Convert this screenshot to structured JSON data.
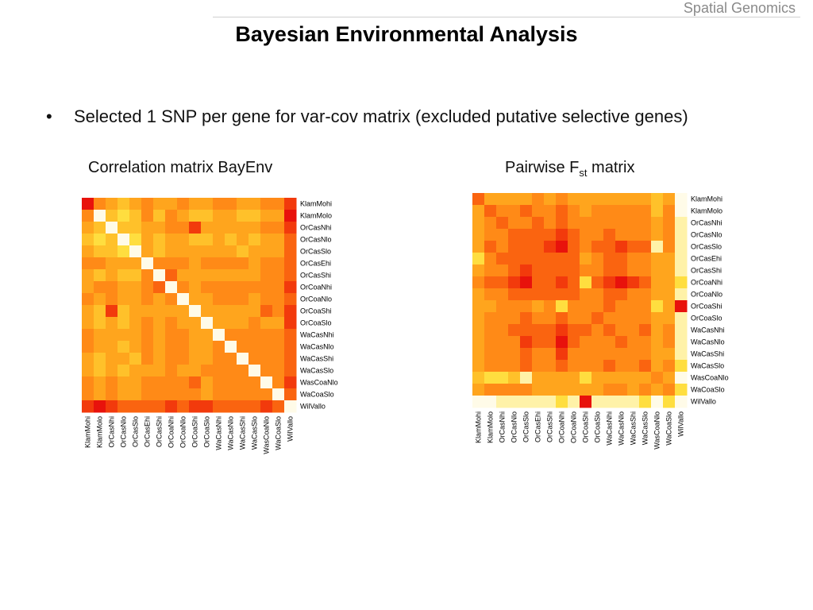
{
  "header": {
    "label": "Spatial Genomics"
  },
  "slide": {
    "title": "Bayesian Environmental Analysis",
    "bullet": "Selected 1 SNP per gene for var-cov matrix (excluded putative selective genes)",
    "bullet_symbol": "•"
  },
  "captions": {
    "left": "Correlation matrix BayEnv",
    "right_prefix": "Pairwise F",
    "right_sub": "st",
    "right_suffix": " matrix"
  },
  "chart_data": [
    {
      "type": "heatmap",
      "title": "Correlation matrix BayEnv",
      "row_labels": [
        "KlamMohi",
        "KlamMolo",
        "OrCasNhi",
        "OrCasNlo",
        "OrCasSlo",
        "OrCasEhi",
        "OrCasShi",
        "OrCoaNhi",
        "OrCoaNlo",
        "OrCoaShi",
        "OrCoaSlo",
        "WaCasNhi",
        "WaCasNlo",
        "WaCasShi",
        "WaCasSlo",
        "WasCoaNlo",
        "WaCoaSlo",
        "WilVallo"
      ],
      "col_labels": [
        "KlamMohi",
        "KlamMolo",
        "OrCasNhi",
        "OrCasNlo",
        "OrCasSlo",
        "OrCasEhi",
        "OrCasShi",
        "OrCoaNhi",
        "OrCoaNlo",
        "OrCoaShi",
        "OrCoaSlo",
        "WaCasNhi",
        "WaCasNlo",
        "WaCasShi",
        "WaCasSlo",
        "WasCoaNlo",
        "WaCoaSlo",
        "WilVallo"
      ],
      "colors": [
        "#e8120c",
        "#f23a0c",
        "#fa6410",
        "#ff8a17",
        "#ffa51d",
        "#ffc12a",
        "#ffde3f",
        "#fff2a8",
        "#fffbe8"
      ],
      "values": [
        [
          0,
          3,
          4,
          5,
          4,
          3,
          4,
          4,
          3,
          4,
          4,
          3,
          3,
          4,
          4,
          3,
          3,
          1
        ],
        [
          3,
          8,
          5,
          6,
          5,
          3,
          5,
          3,
          4,
          5,
          5,
          4,
          4,
          5,
          5,
          4,
          4,
          0
        ],
        [
          4,
          5,
          8,
          5,
          5,
          4,
          4,
          3,
          3,
          1,
          4,
          4,
          4,
          4,
          4,
          3,
          3,
          1
        ],
        [
          5,
          6,
          5,
          8,
          6,
          4,
          5,
          4,
          4,
          5,
          5,
          4,
          5,
          4,
          5,
          4,
          4,
          2
        ],
        [
          4,
          5,
          5,
          6,
          8,
          4,
          5,
          4,
          4,
          4,
          4,
          4,
          4,
          5,
          4,
          4,
          4,
          2
        ],
        [
          3,
          3,
          4,
          4,
          4,
          8,
          3,
          3,
          3,
          4,
          3,
          3,
          3,
          3,
          4,
          3,
          3,
          2
        ],
        [
          4,
          5,
          4,
          5,
          5,
          3,
          8,
          2,
          4,
          4,
          4,
          4,
          4,
          4,
          4,
          3,
          3,
          2
        ],
        [
          4,
          3,
          3,
          4,
          4,
          3,
          2,
          8,
          3,
          4,
          3,
          3,
          3,
          3,
          3,
          3,
          3,
          1
        ],
        [
          3,
          4,
          3,
          4,
          4,
          3,
          4,
          3,
          8,
          4,
          4,
          3,
          3,
          3,
          4,
          3,
          3,
          2
        ],
        [
          4,
          5,
          1,
          5,
          4,
          4,
          4,
          4,
          4,
          8,
          4,
          4,
          4,
          4,
          4,
          2,
          3,
          1
        ],
        [
          4,
          5,
          4,
          5,
          4,
          3,
          4,
          3,
          4,
          4,
          8,
          4,
          4,
          4,
          3,
          4,
          4,
          1
        ],
        [
          3,
          4,
          4,
          4,
          4,
          3,
          4,
          3,
          3,
          4,
          4,
          8,
          3,
          3,
          3,
          3,
          3,
          2
        ],
        [
          3,
          4,
          4,
          5,
          4,
          3,
          4,
          3,
          3,
          4,
          4,
          3,
          8,
          3,
          3,
          3,
          3,
          2
        ],
        [
          4,
          5,
          4,
          4,
          5,
          3,
          4,
          3,
          3,
          4,
          4,
          3,
          3,
          8,
          3,
          3,
          3,
          2
        ],
        [
          4,
          5,
          4,
          5,
          4,
          4,
          4,
          3,
          4,
          4,
          3,
          3,
          3,
          3,
          8,
          3,
          3,
          2
        ],
        [
          3,
          4,
          3,
          4,
          4,
          3,
          3,
          3,
          3,
          2,
          4,
          3,
          3,
          3,
          3,
          8,
          3,
          1
        ],
        [
          3,
          4,
          3,
          4,
          4,
          3,
          3,
          3,
          3,
          3,
          4,
          3,
          3,
          3,
          3,
          3,
          8,
          2
        ],
        [
          1,
          0,
          1,
          2,
          2,
          2,
          2,
          1,
          2,
          1,
          1,
          2,
          2,
          2,
          2,
          1,
          2,
          8
        ]
      ]
    },
    {
      "type": "heatmap",
      "title": "Pairwise Fst matrix",
      "row_labels": [
        "KlamMohi",
        "KlamMolo",
        "OrCasNhi",
        "OrCasNlo",
        "OrCasSlo",
        "OrCasEhi",
        "OrCasShi",
        "OrCoaNhi",
        "OrCoaNlo",
        "OrCoaShi",
        "OrCoaSlo",
        "WaCasNhi",
        "WaCasNlo",
        "WaCasShi",
        "WaCasSlo",
        "WasCoaNlo",
        "WaCoaSlo",
        "WilVallo"
      ],
      "col_labels": [
        "KlamMohi",
        "KlamMolo",
        "OrCasNhi",
        "OrCasNlo",
        "OrCasSlo",
        "OrCasEhi",
        "OrCasShi",
        "OrCoaNhi",
        "OrCoaNlo",
        "OrCoaShi",
        "OrCoaSlo",
        "WaCasNhi",
        "WaCasNlo",
        "WaCasShi",
        "WaCasSlo",
        "WasCoaNlo",
        "WaCoaSlo",
        "WilVallo"
      ],
      "colors": [
        "#e8120c",
        "#f23a0c",
        "#fa6410",
        "#ff8a17",
        "#ffa51d",
        "#ffc12a",
        "#ffde3f",
        "#fff2a8",
        "#fffbe8"
      ],
      "values": [
        [
          2,
          4,
          4,
          4,
          4,
          3,
          4,
          3,
          4,
          4,
          4,
          4,
          4,
          4,
          4,
          5,
          4,
          8
        ],
        [
          4,
          2,
          3,
          3,
          2,
          3,
          3,
          2,
          3,
          4,
          3,
          3,
          3,
          3,
          3,
          5,
          3,
          8
        ],
        [
          4,
          3,
          2,
          3,
          3,
          2,
          3,
          2,
          3,
          3,
          3,
          3,
          3,
          3,
          3,
          4,
          3,
          7
        ],
        [
          4,
          3,
          3,
          2,
          2,
          2,
          2,
          1,
          2,
          3,
          3,
          2,
          3,
          3,
          3,
          4,
          3,
          7
        ],
        [
          4,
          2,
          3,
          2,
          2,
          2,
          1,
          0,
          2,
          3,
          2,
          2,
          1,
          2,
          2,
          7,
          3,
          7
        ],
        [
          6,
          3,
          2,
          2,
          2,
          2,
          2,
          2,
          2,
          4,
          3,
          2,
          2,
          3,
          3,
          4,
          4,
          7
        ],
        [
          4,
          3,
          3,
          2,
          1,
          2,
          2,
          2,
          2,
          3,
          3,
          2,
          2,
          3,
          3,
          4,
          4,
          7
        ],
        [
          3,
          2,
          2,
          1,
          0,
          2,
          2,
          1,
          2,
          6,
          2,
          1,
          0,
          1,
          2,
          4,
          4,
          6
        ],
        [
          4,
          3,
          3,
          2,
          2,
          2,
          2,
          2,
          2,
          3,
          3,
          2,
          2,
          3,
          3,
          4,
          4,
          7
        ],
        [
          4,
          4,
          3,
          3,
          3,
          4,
          3,
          6,
          3,
          3,
          3,
          2,
          3,
          3,
          3,
          6,
          4,
          0
        ],
        [
          4,
          3,
          3,
          3,
          2,
          3,
          3,
          2,
          3,
          3,
          2,
          3,
          3,
          3,
          3,
          4,
          4,
          7
        ],
        [
          4,
          3,
          3,
          2,
          2,
          2,
          2,
          1,
          2,
          2,
          3,
          2,
          3,
          3,
          2,
          4,
          3,
          7
        ],
        [
          4,
          3,
          3,
          3,
          1,
          2,
          2,
          0,
          2,
          3,
          3,
          3,
          2,
          3,
          3,
          4,
          3,
          7
        ],
        [
          4,
          3,
          3,
          3,
          2,
          3,
          3,
          1,
          3,
          3,
          3,
          3,
          3,
          3,
          3,
          4,
          4,
          7
        ],
        [
          4,
          3,
          3,
          3,
          2,
          3,
          3,
          2,
          3,
          3,
          3,
          2,
          3,
          3,
          2,
          4,
          3,
          6
        ],
        [
          5,
          6,
          6,
          5,
          7,
          4,
          4,
          4,
          4,
          6,
          4,
          4,
          4,
          4,
          4,
          3,
          4,
          8
        ],
        [
          4,
          3,
          3,
          3,
          3,
          4,
          4,
          4,
          4,
          4,
          4,
          3,
          3,
          4,
          3,
          4,
          3,
          6
        ],
        [
          8,
          8,
          7,
          7,
          7,
          7,
          7,
          6,
          7,
          0,
          7,
          7,
          7,
          7,
          6,
          8,
          6,
          8
        ]
      ]
    }
  ]
}
